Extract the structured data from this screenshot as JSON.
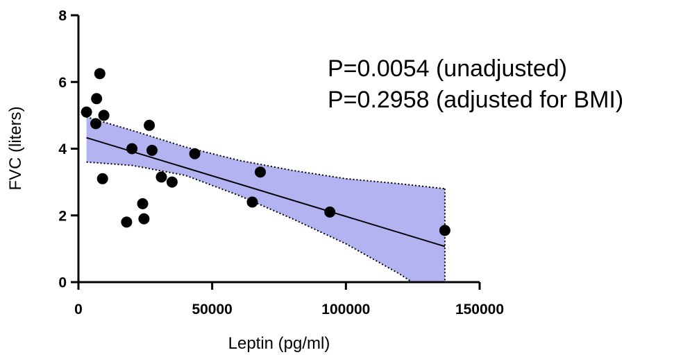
{
  "chart_data": {
    "type": "scatter",
    "title": "",
    "xlabel": "Leptin (pg/ml)",
    "ylabel": "FVC (liters)",
    "xlim": [
      0,
      150000
    ],
    "ylim": [
      0,
      8
    ],
    "x_ticks": [
      0,
      50000,
      100000,
      150000
    ],
    "y_ticks": [
      0,
      2,
      4,
      6,
      8
    ],
    "x_tick_labels": [
      "0",
      "50000",
      "100000",
      "150000"
    ],
    "y_tick_labels": [
      "0",
      "2",
      "4",
      "6",
      "8"
    ],
    "grid": false,
    "points": [
      {
        "x": 3000,
        "y": 5.1
      },
      {
        "x": 6500,
        "y": 4.75
      },
      {
        "x": 6800,
        "y": 5.5
      },
      {
        "x": 8000,
        "y": 6.25
      },
      {
        "x": 9000,
        "y": 3.1
      },
      {
        "x": 9500,
        "y": 5.0
      },
      {
        "x": 18000,
        "y": 1.8
      },
      {
        "x": 20000,
        "y": 4.0
      },
      {
        "x": 24000,
        "y": 2.35
      },
      {
        "x": 24500,
        "y": 1.9
      },
      {
        "x": 26500,
        "y": 4.7
      },
      {
        "x": 27500,
        "y": 3.95
      },
      {
        "x": 31000,
        "y": 3.15
      },
      {
        "x": 35000,
        "y": 3.0
      },
      {
        "x": 43500,
        "y": 3.85
      },
      {
        "x": 65000,
        "y": 2.4
      },
      {
        "x": 68000,
        "y": 3.3
      },
      {
        "x": 94000,
        "y": 2.1
      },
      {
        "x": 137000,
        "y": 1.55
      }
    ],
    "regression": {
      "x": [
        3000,
        137000
      ],
      "y": [
        4.33,
        1.07
      ]
    },
    "confidence_band": {
      "x": [
        3000,
        20000,
        40000,
        60000,
        80000,
        100000,
        120000,
        137000
      ],
      "upper": [
        4.95,
        4.55,
        4.05,
        3.65,
        3.35,
        3.1,
        2.95,
        2.8
      ],
      "lower": [
        3.6,
        3.5,
        3.2,
        2.6,
        1.9,
        1.15,
        0.25,
        -0.65
      ]
    },
    "band_color": "#9999ee",
    "line_color": "#000000",
    "marker_color": "#000000",
    "annotations": [
      "P=0.0054 (unadjusted)",
      "P=0.2958  (adjusted for BMI)"
    ]
  }
}
